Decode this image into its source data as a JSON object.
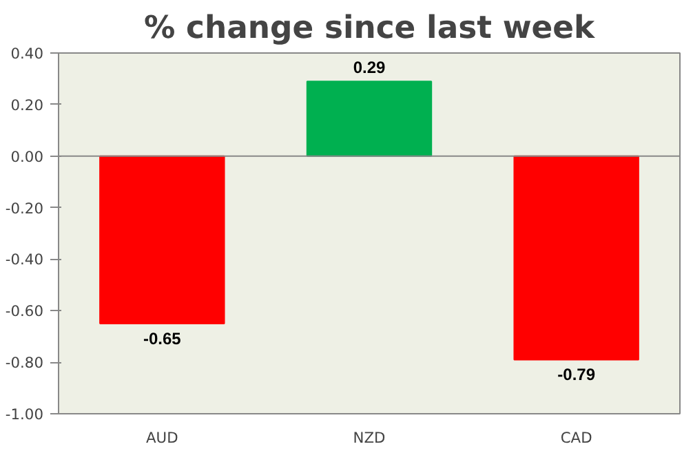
{
  "chart_data": {
    "type": "bar",
    "title": "% change since last week",
    "categories": [
      "AUD",
      "NZD",
      "CAD"
    ],
    "values": [
      -0.65,
      0.29,
      -0.79
    ],
    "colors": [
      "#ff0000",
      "#00b050",
      "#ff0000"
    ],
    "value_labels": [
      "-0.65",
      "0.29",
      "-0.79"
    ],
    "ylim": [
      -1.0,
      0.4
    ],
    "yticks": [
      {
        "value": -1.0,
        "label": "-1.00"
      },
      {
        "value": -0.8,
        "label": "-0.80"
      },
      {
        "value": -0.6,
        "label": "-0.60"
      },
      {
        "value": -0.4,
        "label": "-0.40"
      },
      {
        "value": -0.2,
        "label": "-0.20"
      },
      {
        "value": 0.0,
        "label": "0.00"
      },
      {
        "value": 0.2,
        "label": "0.20"
      },
      {
        "value": 0.4,
        "label": "0.40"
      }
    ],
    "ref_lines": [
      {
        "axis": "y",
        "value": 0,
        "color": "#888888"
      }
    ]
  }
}
